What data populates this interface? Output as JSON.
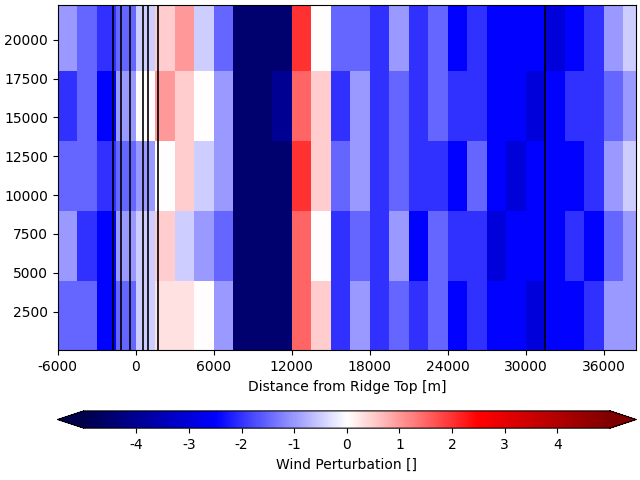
{
  "chart_data": {
    "type": "heatmap",
    "xlabel": "Distance from Ridge Top [m]",
    "xlim": [
      -6000,
      38500
    ],
    "xticks": [
      -6000,
      0,
      6000,
      12000,
      18000,
      24000,
      30000,
      36000
    ],
    "ylim": [
      0,
      22250
    ],
    "yticks": [
      2500,
      5000,
      7500,
      10000,
      12500,
      15000,
      17500,
      20000
    ],
    "x_edges": [
      -6000,
      -4500,
      -3000,
      -1500,
      0,
      1500,
      3000,
      4500,
      6000,
      7500,
      9000,
      10500,
      12000,
      13500,
      15000,
      16500,
      18000,
      19500,
      21000,
      22500,
      24000,
      25500,
      27000,
      28500,
      30000,
      31500,
      33000,
      34500,
      36000,
      37500,
      39000
    ],
    "y_edges": [
      0,
      4500,
      9000,
      13500,
      18000,
      22500
    ],
    "cells": [
      [
        -1.5,
        -1.5,
        -2.5,
        -1.5,
        -0.5,
        0.3,
        0.3,
        0.0,
        -1.0,
        -4.5,
        -4.5,
        -4.5,
        1.5,
        0.5,
        -2.0,
        -1.0,
        -2.0,
        -1.5,
        -2.0,
        -1.5,
        -2.5,
        -2.0,
        -2.5,
        -2.5,
        -3.0,
        -2.5,
        -2.5,
        -2.0,
        -1.0,
        -1.0
      ],
      [
        -1.0,
        -2.0,
        -2.5,
        -1.0,
        -0.5,
        0.5,
        -0.5,
        -1.0,
        -1.5,
        -4.5,
        -4.5,
        -4.5,
        1.5,
        0.0,
        -2.0,
        -1.5,
        -2.0,
        -1.0,
        -2.5,
        -1.5,
        -2.0,
        -2.0,
        -3.0,
        -2.5,
        -2.5,
        -2.5,
        -2.0,
        -2.5,
        -1.5,
        -1.0
      ],
      [
        -1.5,
        -1.5,
        -2.0,
        -1.5,
        -1.0,
        0.0,
        0.5,
        -0.5,
        -1.0,
        -4.5,
        -4.5,
        -4.5,
        2.0,
        0.5,
        -1.5,
        -1.0,
        -2.0,
        -1.5,
        -2.0,
        -2.0,
        -2.5,
        -1.5,
        -2.5,
        -3.0,
        -2.5,
        -2.5,
        -2.5,
        -2.0,
        -1.0,
        -0.5
      ],
      [
        -2.0,
        -1.5,
        -2.5,
        -1.0,
        0.0,
        1.0,
        0.5,
        0.0,
        -1.0,
        -4.5,
        -4.5,
        -4.0,
        1.5,
        0.5,
        -2.0,
        -1.0,
        -2.0,
        -1.5,
        -2.0,
        -1.5,
        -2.0,
        -2.0,
        -2.5,
        -2.5,
        -3.0,
        -2.5,
        -2.0,
        -2.0,
        -1.5,
        -1.0
      ],
      [
        -1.0,
        -1.5,
        -2.0,
        -1.5,
        -0.5,
        0.5,
        1.0,
        -0.5,
        -1.5,
        -4.5,
        -4.5,
        -4.5,
        2.0,
        0.0,
        -1.5,
        -1.5,
        -2.0,
        -1.0,
        -2.0,
        -1.5,
        -2.5,
        -2.0,
        -2.5,
        -2.5,
        -2.5,
        -3.0,
        -2.5,
        -2.0,
        -1.0,
        -0.5
      ]
    ],
    "vlines": [
      -1770,
      -1150,
      -460,
      540,
      920,
      1690,
      31450
    ],
    "colorbar_range": [
      -5,
      5
    ],
    "colorbar_ticks": [
      -4,
      -3,
      -2,
      -1,
      0,
      1,
      2,
      3,
      4
    ],
    "colorbar_label": "Wind Perturbation []"
  }
}
